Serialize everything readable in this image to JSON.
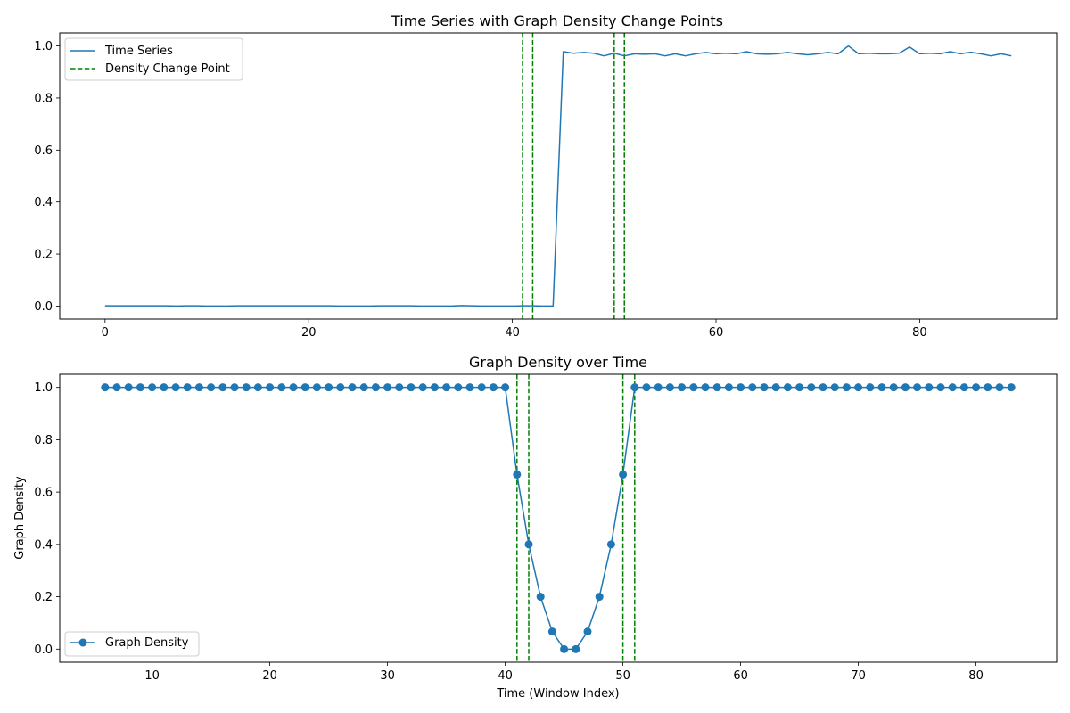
{
  "colors": {
    "series": "#1f77b4",
    "change_point": "#008000",
    "axes": "#000000",
    "legend_border": "#cccccc",
    "background": "#ffffff"
  },
  "chart_data": [
    {
      "type": "line",
      "title": "Time Series with Graph Density Change Points",
      "xlabel": "",
      "ylabel": "",
      "xlim": [
        -4.45,
        93.45
      ],
      "ylim": [
        -0.05,
        1.05
      ],
      "xticks": [
        0,
        20,
        40,
        60,
        80
      ],
      "yticks": [
        0.0,
        0.2,
        0.4,
        0.6,
        0.8,
        1.0
      ],
      "xtick_labels": [
        "0",
        "20",
        "40",
        "60",
        "80"
      ],
      "ytick_labels": [
        "0.0",
        "0.2",
        "0.4",
        "0.6",
        "0.8",
        "1.0"
      ],
      "grid": false,
      "legend_position": "upper-left",
      "series": [
        {
          "name": "Time Series",
          "x": [
            0,
            1,
            2,
            3,
            4,
            5,
            6,
            7,
            8,
            9,
            10,
            11,
            12,
            13,
            14,
            15,
            16,
            17,
            18,
            19,
            20,
            21,
            22,
            23,
            24,
            25,
            26,
            27,
            28,
            29,
            30,
            31,
            32,
            33,
            34,
            35,
            36,
            37,
            38,
            39,
            40,
            41,
            42,
            43,
            44,
            45,
            46,
            47,
            48,
            49,
            50,
            51,
            52,
            53,
            54,
            55,
            56,
            57,
            58,
            59,
            60,
            61,
            62,
            63,
            64,
            65,
            66,
            67,
            68,
            69,
            70,
            71,
            72,
            73,
            74,
            75,
            76,
            77,
            78,
            79,
            80,
            81,
            82,
            83,
            84,
            85,
            86,
            87,
            88,
            89
          ],
          "y": [
            0.001,
            0.001,
            0.001,
            0.001,
            0.001,
            0.001,
            0.001,
            0.0,
            0.001,
            0.001,
            0.0,
            0.0,
            0.0,
            0.001,
            0.001,
            0.001,
            0.001,
            0.001,
            0.001,
            0.001,
            0.001,
            0.001,
            0.001,
            0.0,
            0.0,
            0.0,
            0.0,
            0.001,
            0.001,
            0.001,
            0.001,
            0.0,
            0.0,
            0.0,
            0.0,
            0.002,
            0.001,
            0.0,
            0.0,
            0.0,
            0.0,
            0.001,
            0.001,
            0.0,
            0.0,
            0.978,
            0.972,
            0.975,
            0.972,
            0.962,
            0.972,
            0.962,
            0.97,
            0.968,
            0.97,
            0.962,
            0.97,
            0.962,
            0.97,
            0.975,
            0.97,
            0.972,
            0.97,
            0.978,
            0.97,
            0.968,
            0.97,
            0.975,
            0.97,
            0.966,
            0.97,
            0.975,
            0.97,
            1.0,
            0.97,
            0.972,
            0.97,
            0.97,
            0.972,
            0.996,
            0.97,
            0.972,
            0.97,
            0.978,
            0.97,
            0.976,
            0.97,
            0.962,
            0.97,
            0.962
          ]
        }
      ],
      "change_points": {
        "name": "Density Change Point",
        "x": [
          41,
          42,
          50,
          51
        ]
      }
    },
    {
      "type": "line",
      "title": "Graph Density over Time",
      "xlabel": "Time (Window Index)",
      "ylabel": "Graph Density",
      "xlim": [
        2.15,
        86.85
      ],
      "ylim": [
        -0.05,
        1.05
      ],
      "xticks": [
        10,
        20,
        30,
        40,
        50,
        60,
        70,
        80
      ],
      "yticks": [
        0.0,
        0.2,
        0.4,
        0.6,
        0.8,
        1.0
      ],
      "xtick_labels": [
        "10",
        "20",
        "30",
        "40",
        "50",
        "60",
        "70",
        "80"
      ],
      "ytick_labels": [
        "0.0",
        "0.2",
        "0.4",
        "0.6",
        "0.8",
        "1.0"
      ],
      "grid": false,
      "legend_position": "lower-left",
      "series": [
        {
          "name": "Graph Density",
          "marker": "circle",
          "x": [
            6,
            7,
            8,
            9,
            10,
            11,
            12,
            13,
            14,
            15,
            16,
            17,
            18,
            19,
            20,
            21,
            22,
            23,
            24,
            25,
            26,
            27,
            28,
            29,
            30,
            31,
            32,
            33,
            34,
            35,
            36,
            37,
            38,
            39,
            40,
            41,
            42,
            43,
            44,
            45,
            46,
            47,
            48,
            49,
            50,
            51,
            52,
            53,
            54,
            55,
            56,
            57,
            58,
            59,
            60,
            61,
            62,
            63,
            64,
            65,
            66,
            67,
            68,
            69,
            70,
            71,
            72,
            73,
            74,
            75,
            76,
            77,
            78,
            79,
            80,
            81,
            82,
            83
          ],
          "y": [
            1,
            1,
            1,
            1,
            1,
            1,
            1,
            1,
            1,
            1,
            1,
            1,
            1,
            1,
            1,
            1,
            1,
            1,
            1,
            1,
            1,
            1,
            1,
            1,
            1,
            1,
            1,
            1,
            1,
            1,
            1,
            1,
            1,
            1,
            1,
            0.667,
            0.4,
            0.2,
            0.067,
            0.0,
            0.0,
            0.067,
            0.2,
            0.4,
            0.667,
            1,
            1,
            1,
            1,
            1,
            1,
            1,
            1,
            1,
            1,
            1,
            1,
            1,
            1,
            1,
            1,
            1,
            1,
            1,
            1,
            1,
            1,
            1,
            1,
            1,
            1,
            1,
            1,
            1,
            1,
            1,
            1,
            1
          ]
        }
      ],
      "change_points": {
        "name": "",
        "x": [
          41,
          42,
          50,
          51
        ]
      }
    }
  ]
}
